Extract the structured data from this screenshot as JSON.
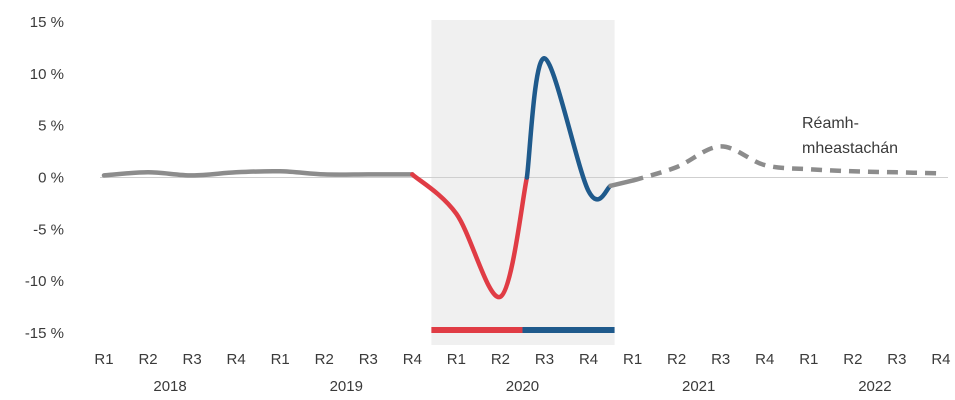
{
  "chart_data": {
    "type": "line",
    "title": "",
    "xlabel": "",
    "ylabel": "",
    "ylim": [
      -15,
      15
    ],
    "yticks": [
      15,
      10,
      5,
      0,
      -5,
      -10,
      -15
    ],
    "ytick_labels": [
      "15 %",
      "10 %",
      "5 %",
      "0 %",
      "-5 %",
      "-10 %",
      "-15 %"
    ],
    "categories": [
      "R1",
      "R2",
      "R3",
      "R4",
      "R1",
      "R2",
      "R3",
      "R4",
      "R1",
      "R2",
      "R3",
      "R4",
      "R1",
      "R2",
      "R3",
      "R4",
      "R1",
      "R2",
      "R3",
      "R4"
    ],
    "years": [
      "2018",
      "2019",
      "2020",
      "2021",
      "2022"
    ],
    "shaded_period": {
      "start_index": 7.5,
      "end_index": 11.5,
      "color": "#f0f0f0"
    },
    "period_bar": [
      {
        "start_index": 7.5,
        "end_index": 9.5,
        "color": "#e03c45"
      },
      {
        "start_index": 9.5,
        "end_index": 11.5,
        "color": "#1f5a8c"
      }
    ],
    "series": [
      {
        "style": "solid",
        "color": "#8c8c8c",
        "x": [
          0,
          1,
          2,
          3,
          4,
          5,
          6,
          7
        ],
        "values": [
          0.2,
          0.5,
          0.2,
          0.5,
          0.6,
          0.3,
          0.3,
          0.3
        ]
      },
      {
        "style": "solid",
        "color": "#e03c45",
        "x": [
          7,
          8,
          9,
          9.6
        ],
        "values": [
          0.3,
          -3.5,
          -11.5,
          0.0
        ]
      },
      {
        "style": "solid",
        "color": "#1f5a8c",
        "x": [
          9.6,
          10,
          11,
          11.5
        ],
        "values": [
          0.0,
          11.5,
          -1.3,
          -0.8
        ]
      },
      {
        "style": "solid",
        "color": "#8c8c8c",
        "x": [
          11.5,
          12
        ],
        "values": [
          -0.8,
          -0.3
        ]
      },
      {
        "style": "dashed",
        "color": "#8c8c8c",
        "x": [
          12,
          13,
          14,
          15,
          16,
          17,
          18,
          19
        ],
        "values": [
          -0.3,
          1.0,
          3.0,
          1.2,
          0.8,
          0.6,
          0.5,
          0.4
        ]
      }
    ],
    "annotation": {
      "lines": [
        "Réamh-",
        "mheastachán"
      ]
    },
    "zero_line": true,
    "grid": false,
    "legend": "none"
  }
}
